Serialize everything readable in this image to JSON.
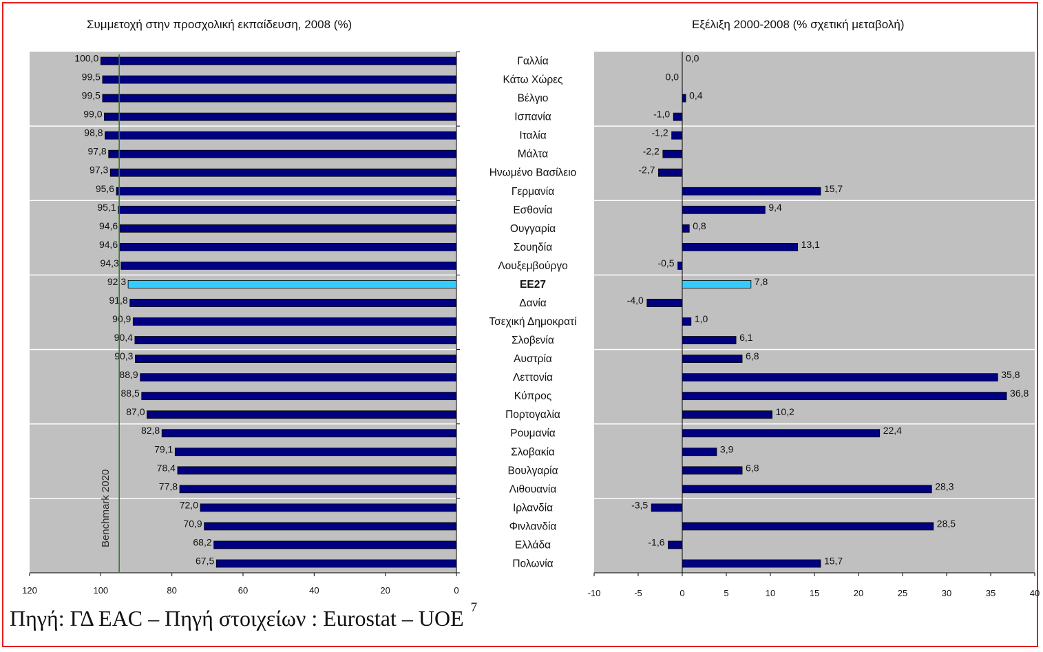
{
  "chart_data": [
    {
      "type": "bar",
      "orientation": "horizontal",
      "title": "Συμμετοχή στην προσχολική εκπαίδευση, 2008 (%)",
      "categories": [
        "Γαλλία",
        "Κάτω Χώρες",
        "Βέλγιο",
        "Ισπανία",
        "Ιταλία",
        "Μάλτα",
        "Ηνωμένο Βασίλειο",
        "Γερμανία",
        "Εσθονία",
        "Ουγγαρία",
        "Σουηδία",
        "Λουξεμβούργο",
        "ΕΕ27",
        "Δανία",
        "Τσεχική Δημοκρατί",
        "Σλοβενία",
        "Αυστρία",
        "Λεττονία",
        "Κύπρος",
        "Πορτογαλία",
        "Ρουμανία",
        "Σλοβακία",
        "Βουλγαρία",
        "Λιθουανία",
        "Ιρλανδία",
        "Φινλανδία",
        "Ελλάδα",
        "Πολωνία"
      ],
      "values": [
        100.0,
        99.5,
        99.5,
        99.0,
        98.8,
        97.8,
        97.3,
        95.6,
        95.1,
        94.6,
        94.6,
        94.3,
        92.3,
        91.8,
        90.9,
        90.4,
        90.3,
        88.9,
        88.5,
        87.0,
        82.8,
        79.1,
        78.4,
        77.8,
        72.0,
        70.9,
        68.2,
        67.5
      ],
      "value_labels": [
        "100,0",
        "99,5",
        "99,5",
        "99,0",
        "98,8",
        "97,8",
        "97,3",
        "95,6",
        "95,1",
        "94,6",
        "94,6",
        "94,3",
        "92,3",
        "91,8",
        "90,9",
        "90,4",
        "90,3",
        "88,9",
        "88,5",
        "87,0",
        "82,8",
        "79,1",
        "78,4",
        "77,8",
        "72,0",
        "70,9",
        "68,2",
        "67,5"
      ],
      "highlight": "ΕΕ27",
      "xlim": [
        120,
        0
      ],
      "xticks": [
        "120",
        "100",
        "80",
        "60",
        "40",
        "20",
        "0"
      ],
      "benchmark": {
        "value": 95,
        "label": "Benchmark 2020"
      },
      "grid": true
    },
    {
      "type": "bar",
      "orientation": "horizontal",
      "title": "Εξέλιξη 2000-2008 (% σχετική μεταβολή)",
      "categories": [
        "Γαλλία",
        "Κάτω Χώρες",
        "Βέλγιο",
        "Ισπανία",
        "Ιταλία",
        "Μάλτα",
        "Ηνωμένο Βασίλειο",
        "Γερμανία",
        "Εσθονία",
        "Ουγγαρία",
        "Σουηδία",
        "Λουξεμβούργο",
        "ΕΕ27",
        "Δανία",
        "Τσεχική Δημοκρατί",
        "Σλοβενία",
        "Αυστρία",
        "Λεττονία",
        "Κύπρος",
        "Πορτογαλία",
        "Ρουμανία",
        "Σλοβακία",
        "Βουλγαρία",
        "Λιθουανία",
        "Ιρλανδία",
        "Φινλανδία",
        "Ελλάδα",
        "Πολωνία"
      ],
      "values": [
        0.0,
        0.0,
        0.4,
        -1.0,
        -1.2,
        -2.2,
        -2.7,
        15.7,
        9.4,
        0.8,
        13.1,
        -0.5,
        7.8,
        -4.0,
        1.0,
        6.1,
        6.8,
        35.8,
        36.8,
        10.2,
        22.4,
        3.9,
        6.8,
        28.3,
        -3.5,
        28.5,
        -1.6,
        15.7
      ],
      "value_labels": [
        "0,0",
        "0,0",
        "0,4",
        "-1,0",
        "-1,2",
        "-2,2",
        "-2,7",
        "15,7",
        "9,4",
        "0,8",
        "13,1",
        "-0,5",
        "7,8",
        "-4,0",
        "1,0",
        "6,1",
        "6,8",
        "35,8",
        "36,8",
        "10,2",
        "22,4",
        "3,9",
        "6,8",
        "28,3",
        "-3,5",
        "28,5",
        "-1,6",
        "15,7"
      ],
      "highlight": "ΕΕ27",
      "xlim": [
        -10,
        40
      ],
      "xticks": [
        "-10",
        "-5",
        "0",
        "5",
        "10",
        "15",
        "20",
        "25",
        "30",
        "35",
        "40"
      ],
      "grid": true
    }
  ],
  "colors": {
    "bar": "#000080",
    "highlight": "#33ccff",
    "plot_bg": "#c0c0c0",
    "benchmark_line": "#2e7d32",
    "frame": "#e81b1b"
  },
  "source": {
    "text": "Πηγή: ΓΔ EAC – Πηγή στοιχείων : Eurostat – UOE",
    "note": "7"
  }
}
